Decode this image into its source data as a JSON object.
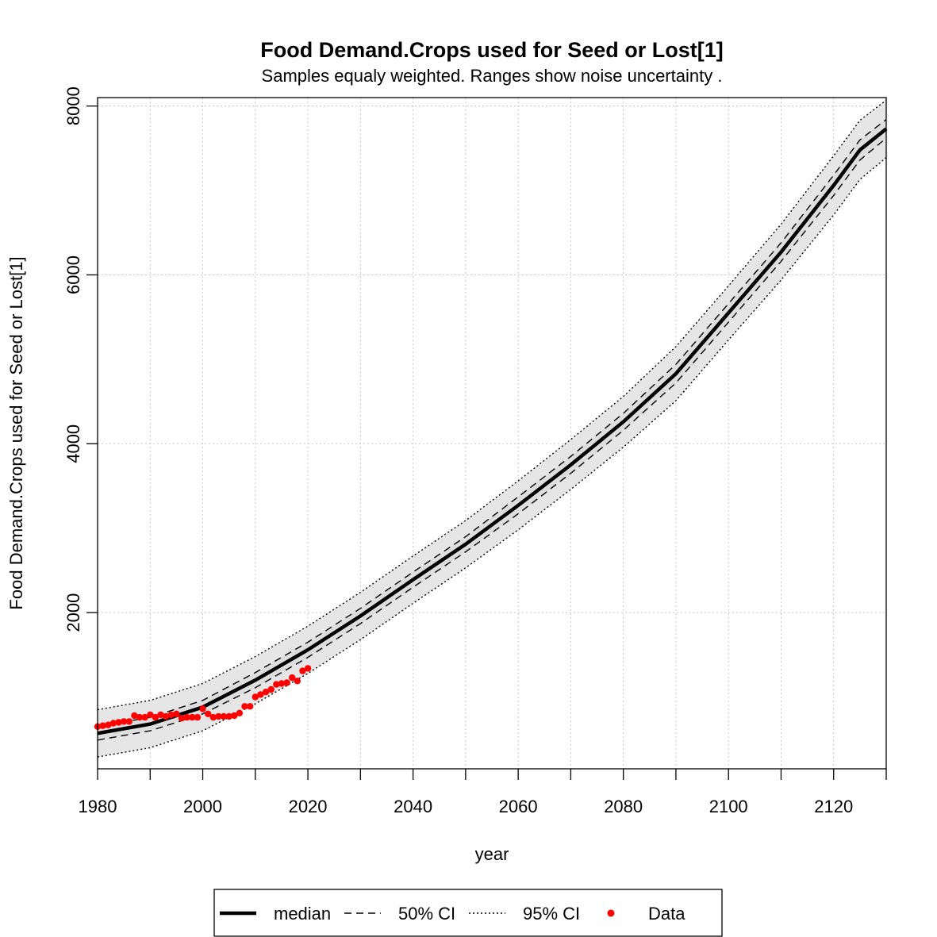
{
  "chart_data": {
    "type": "line",
    "title": "Food Demand.Crops used for Seed or Lost[1]",
    "subtitle": "Samples equaly weighted. Ranges show  noise uncertainty .",
    "xlabel": "year",
    "ylabel": "Food Demand.Crops used for Seed or Lost[1]",
    "xlim": [
      1980,
      2130
    ],
    "ylim": [
      150,
      8100
    ],
    "x_ticks": [
      1980,
      2000,
      2020,
      2040,
      2060,
      2080,
      2100,
      2120
    ],
    "x_tick_labels": [
      "1980",
      "2000",
      "2020",
      "2040",
      "2060",
      "2080",
      "2100",
      "2120"
    ],
    "y_ticks": [
      2000,
      4000,
      6000,
      8000
    ],
    "y_tick_labels": [
      "2000",
      "4000",
      "6000",
      "8000"
    ],
    "grid": true,
    "legend_position": "bottom",
    "legend": [
      {
        "label": "median",
        "style": "solid-thick"
      },
      {
        "label": "50% CI",
        "style": "dashed"
      },
      {
        "label": "95% CI",
        "style": "dotted"
      },
      {
        "label": "Data",
        "style": "point",
        "color": "#ff0000"
      }
    ],
    "colors": {
      "band": "#e6e6e6",
      "line": "#000000",
      "data": "#ff0000",
      "grid": "#c8c8c8"
    },
    "x": [
      1980,
      1990,
      2000,
      2010,
      2020,
      2030,
      2040,
      2050,
      2060,
      2070,
      2080,
      2090,
      2100,
      2110,
      2120,
      2125,
      2130
    ],
    "series": [
      {
        "name": "median",
        "values": [
          570,
          680,
          880,
          1200,
          1560,
          1960,
          2390,
          2810,
          3270,
          3750,
          4260,
          4830,
          5550,
          6270,
          7060,
          7480,
          7730
        ]
      },
      {
        "name": "50% CI",
        "values": [
          490,
          600,
          800,
          1110,
          1470,
          1870,
          2300,
          2720,
          3170,
          3650,
          4160,
          4720,
          5440,
          6160,
          6940,
          7360,
          7620
        ]
      },
      {
        "name": "50% CI",
        "values": [
          650,
          760,
          960,
          1290,
          1650,
          2050,
          2480,
          2900,
          3370,
          3850,
          4360,
          4940,
          5660,
          6380,
          7180,
          7600,
          7840
        ]
      },
      {
        "name": "95% CI",
        "values": [
          290,
          400,
          600,
          920,
          1280,
          1680,
          2110,
          2530,
          2980,
          3460,
          3960,
          4510,
          5230,
          5940,
          6710,
          7130,
          7390
        ]
      },
      {
        "name": "95% CI",
        "values": [
          850,
          960,
          1160,
          1480,
          1840,
          2240,
          2670,
          3090,
          3560,
          4050,
          4560,
          5150,
          5870,
          6600,
          7410,
          7830,
          8070
        ]
      },
      {
        "name": "Data",
        "x": [
          1980,
          1981,
          1982,
          1983,
          1984,
          1985,
          1986,
          1987,
          1988,
          1989,
          1990,
          1991,
          1992,
          1993,
          1994,
          1995,
          1996,
          1997,
          1998,
          1999,
          2000,
          2001,
          2002,
          2003,
          2004,
          2005,
          2006,
          2007,
          2008,
          2009,
          2010,
          2011,
          2012,
          2013,
          2014,
          2015,
          2016,
          2017,
          2018,
          2019,
          2020
        ],
        "values": [
          650,
          660,
          670,
          690,
          700,
          710,
          710,
          780,
          760,
          760,
          790,
          760,
          790,
          770,
          790,
          800,
          750,
          760,
          760,
          760,
          860,
          800,
          760,
          770,
          770,
          770,
          780,
          810,
          890,
          890,
          1000,
          1030,
          1060,
          1090,
          1150,
          1160,
          1170,
          1230,
          1190,
          1310,
          1340
        ]
      }
    ]
  }
}
